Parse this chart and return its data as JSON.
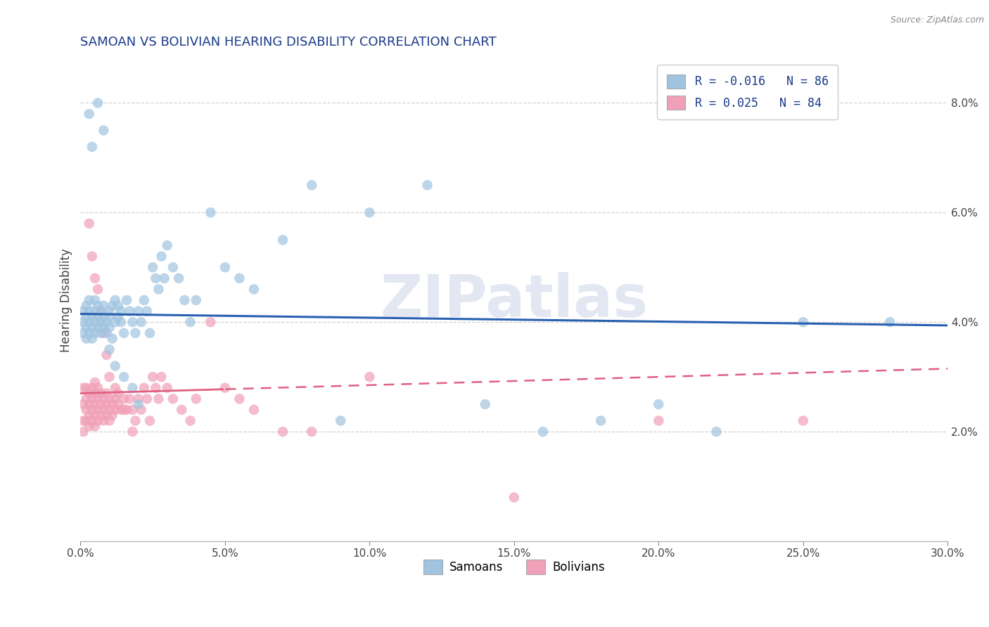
{
  "title": "SAMOAN VS BOLIVIAN HEARING DISABILITY CORRELATION CHART",
  "source": "Source: ZipAtlas.com",
  "ylabel": "Hearing Disability",
  "xlim": [
    0.0,
    0.3
  ],
  "ylim": [
    0.0,
    0.088
  ],
  "xticks": [
    0.0,
    0.05,
    0.1,
    0.15,
    0.2,
    0.25,
    0.3
  ],
  "xtick_labels": [
    "0.0%",
    "5.0%",
    "10.0%",
    "15.0%",
    "20.0%",
    "25.0%",
    "30.0%"
  ],
  "yticks": [
    0.0,
    0.02,
    0.04,
    0.06,
    0.08
  ],
  "ytick_labels": [
    "",
    "2.0%",
    "4.0%",
    "6.0%",
    "8.0%"
  ],
  "legend_labels": [
    "Samoans",
    "Bolivians"
  ],
  "samoan_color": "#a0c4e0",
  "bolivian_color": "#f0a0b8",
  "blue_line_color": "#2860b0",
  "pink_line_color": "#e06080",
  "title_color": "#1a3a8a",
  "source_color": "#888888",
  "background_color": "#ffffff",
  "grid_color": "#cccccc",
  "watermark_color": "#ccd5e8",
  "legend_text_color": "#1a3a8a",
  "samoan_R": -0.016,
  "samoan_N": 86,
  "bolivian_R": 0.025,
  "bolivian_N": 84,
  "samoan_x": [
    0.001,
    0.001,
    0.001,
    0.002,
    0.002,
    0.002,
    0.002,
    0.003,
    0.003,
    0.003,
    0.003,
    0.004,
    0.004,
    0.004,
    0.005,
    0.005,
    0.005,
    0.005,
    0.006,
    0.006,
    0.006,
    0.007,
    0.007,
    0.007,
    0.008,
    0.008,
    0.008,
    0.009,
    0.009,
    0.01,
    0.01,
    0.01,
    0.011,
    0.011,
    0.012,
    0.012,
    0.013,
    0.013,
    0.014,
    0.014,
    0.015,
    0.016,
    0.017,
    0.018,
    0.019,
    0.02,
    0.021,
    0.022,
    0.023,
    0.024,
    0.025,
    0.026,
    0.027,
    0.028,
    0.029,
    0.03,
    0.032,
    0.034,
    0.036,
    0.038,
    0.04,
    0.045,
    0.05,
    0.055,
    0.06,
    0.07,
    0.08,
    0.09,
    0.1,
    0.12,
    0.14,
    0.16,
    0.18,
    0.2,
    0.22,
    0.25,
    0.28,
    0.003,
    0.004,
    0.006,
    0.008,
    0.01,
    0.012,
    0.015,
    0.018,
    0.02
  ],
  "samoan_y": [
    0.04,
    0.038,
    0.042,
    0.039,
    0.041,
    0.037,
    0.043,
    0.04,
    0.038,
    0.042,
    0.044,
    0.039,
    0.041,
    0.037,
    0.04,
    0.042,
    0.038,
    0.044,
    0.041,
    0.039,
    0.043,
    0.04,
    0.038,
    0.042,
    0.039,
    0.041,
    0.043,
    0.038,
    0.04,
    0.042,
    0.039,
    0.041,
    0.043,
    0.037,
    0.04,
    0.044,
    0.041,
    0.043,
    0.04,
    0.042,
    0.038,
    0.044,
    0.042,
    0.04,
    0.038,
    0.042,
    0.04,
    0.044,
    0.042,
    0.038,
    0.05,
    0.048,
    0.046,
    0.052,
    0.048,
    0.054,
    0.05,
    0.048,
    0.044,
    0.04,
    0.044,
    0.06,
    0.05,
    0.048,
    0.046,
    0.055,
    0.065,
    0.022,
    0.06,
    0.065,
    0.025,
    0.02,
    0.022,
    0.025,
    0.02,
    0.04,
    0.04,
    0.078,
    0.072,
    0.08,
    0.075,
    0.035,
    0.032,
    0.03,
    0.028,
    0.025
  ],
  "bolivian_x": [
    0.001,
    0.001,
    0.001,
    0.001,
    0.002,
    0.002,
    0.002,
    0.002,
    0.003,
    0.003,
    0.003,
    0.003,
    0.004,
    0.004,
    0.004,
    0.004,
    0.005,
    0.005,
    0.005,
    0.005,
    0.005,
    0.006,
    0.006,
    0.006,
    0.006,
    0.007,
    0.007,
    0.007,
    0.008,
    0.008,
    0.008,
    0.009,
    0.009,
    0.009,
    0.01,
    0.01,
    0.01,
    0.011,
    0.011,
    0.012,
    0.012,
    0.013,
    0.013,
    0.014,
    0.015,
    0.016,
    0.017,
    0.018,
    0.019,
    0.02,
    0.021,
    0.022,
    0.023,
    0.024,
    0.025,
    0.026,
    0.027,
    0.028,
    0.03,
    0.032,
    0.035,
    0.038,
    0.04,
    0.045,
    0.05,
    0.055,
    0.06,
    0.07,
    0.08,
    0.1,
    0.15,
    0.2,
    0.25,
    0.003,
    0.004,
    0.005,
    0.006,
    0.007,
    0.008,
    0.009,
    0.01,
    0.012,
    0.015,
    0.018
  ],
  "bolivian_y": [
    0.025,
    0.022,
    0.028,
    0.02,
    0.024,
    0.026,
    0.022,
    0.028,
    0.025,
    0.023,
    0.027,
    0.021,
    0.024,
    0.026,
    0.022,
    0.028,
    0.025,
    0.023,
    0.027,
    0.021,
    0.029,
    0.024,
    0.026,
    0.022,
    0.028,
    0.025,
    0.023,
    0.027,
    0.024,
    0.026,
    0.022,
    0.025,
    0.023,
    0.027,
    0.024,
    0.026,
    0.022,
    0.025,
    0.023,
    0.024,
    0.026,
    0.025,
    0.027,
    0.024,
    0.026,
    0.024,
    0.026,
    0.024,
    0.022,
    0.026,
    0.024,
    0.028,
    0.026,
    0.022,
    0.03,
    0.028,
    0.026,
    0.03,
    0.028,
    0.026,
    0.024,
    0.022,
    0.026,
    0.04,
    0.028,
    0.026,
    0.024,
    0.02,
    0.02,
    0.03,
    0.008,
    0.022,
    0.022,
    0.058,
    0.052,
    0.048,
    0.046,
    0.042,
    0.038,
    0.034,
    0.03,
    0.028,
    0.024,
    0.02
  ]
}
